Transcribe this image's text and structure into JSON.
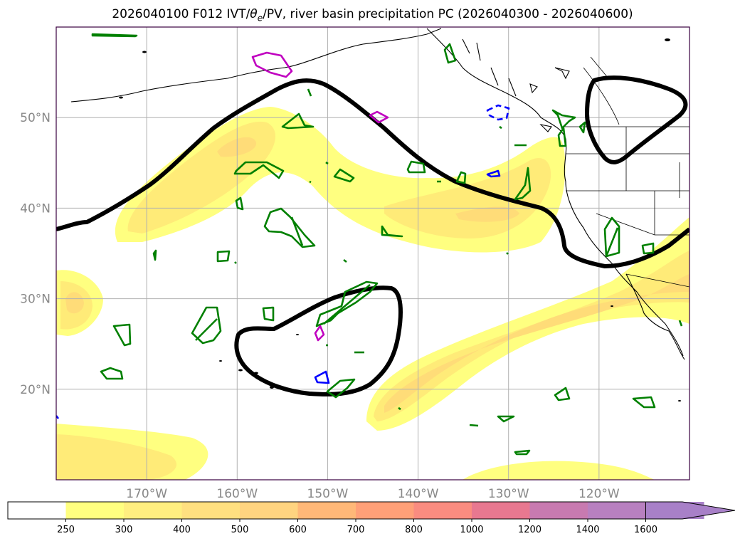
{
  "title": "2026040100 F012 IVT/θe/PV, river basin precipitation PC (2026040300 - 2026040600)",
  "title_parts": {
    "prefix": "2026040100 F012 IVT/",
    "theta": "θ",
    "theta_sub": "e",
    "suffix": "/PV, river basin precipitation PC (2026040300 - 2026040600)"
  },
  "map": {
    "extent": {
      "lon_min": 180,
      "lon_max": 250,
      "lat_min": 10,
      "lat_max": 60
    },
    "lat_ticks": [
      {
        "value": 20,
        "label": "20°N"
      },
      {
        "value": 30,
        "label": "30°N"
      },
      {
        "value": 40,
        "label": "40°N"
      },
      {
        "value": 50,
        "label": "50°N"
      }
    ],
    "lon_ticks": [
      {
        "value": 190,
        "label": "170°W"
      },
      {
        "value": 200,
        "label": "160°W"
      },
      {
        "value": 210,
        "label": "150°W"
      },
      {
        "value": 220,
        "label": "140°W"
      },
      {
        "value": 230,
        "label": "130°W"
      },
      {
        "value": 240,
        "label": "120°W"
      }
    ],
    "colors": {
      "ivt_250": "#ffff80",
      "ivt_300": "#ffeb78",
      "ivt_400": "#ffdc78",
      "pv_contour": "#000000",
      "precip_green": "#008000",
      "precip_magenta": "#c000c0",
      "precip_blue": "#0000ff",
      "grid": "#b0b0b0",
      "frame": "#3a0040"
    }
  },
  "colorbar": {
    "ticks": [
      "250",
      "300",
      "400",
      "500",
      "600",
      "700",
      "800",
      "1000",
      "1200",
      "1400",
      "1600"
    ],
    "colors": [
      "#ffffff",
      "#ffff80",
      "#ffef80",
      "#ffe080",
      "#ffd480",
      "#ffb878",
      "#ffa078",
      "#fa8c80",
      "#e87890",
      "#c87ab0",
      "#b880c0",
      "#a880c8"
    ]
  }
}
